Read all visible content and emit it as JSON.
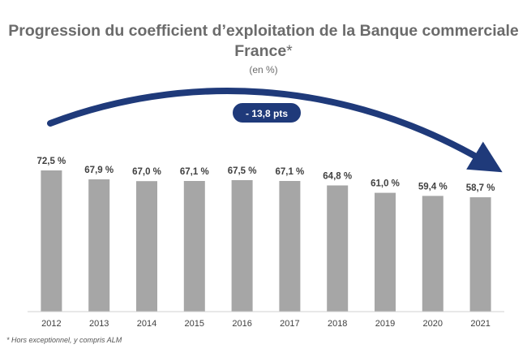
{
  "title": "Progression du coefficient d’exploitation de la Banque commerciale France",
  "title_marker": "*",
  "subtitle": "(en %)",
  "annotation": "- 13,8 pts",
  "footnote": "* Hors exceptionnel, y compris ALM",
  "colors": {
    "bar": "#a6a6a6",
    "arrow": "#1f3a7a",
    "text": "#404040",
    "title": "#6b6b6b"
  },
  "chart_data": {
    "type": "bar",
    "categories": [
      "2012",
      "2013",
      "2014",
      "2015",
      "2016",
      "2017",
      "2018",
      "2019",
      "2020",
      "2021"
    ],
    "values": [
      72.5,
      67.9,
      67.0,
      67.1,
      67.5,
      67.1,
      64.8,
      61.0,
      59.4,
      58.7
    ],
    "labels": [
      "72,5 %",
      "67,9 %",
      "67,0 %",
      "67,1 %",
      "67,5 %",
      "67,1 %",
      "64,8 %",
      "61,0 %",
      "59,4 %",
      "58,7 %"
    ],
    "title": "Progression du coefficient d’exploitation de la Banque commerciale France*",
    "xlabel": "",
    "ylabel": "",
    "grid": false,
    "legend": "none",
    "annotation": "- 13,8 pts"
  }
}
